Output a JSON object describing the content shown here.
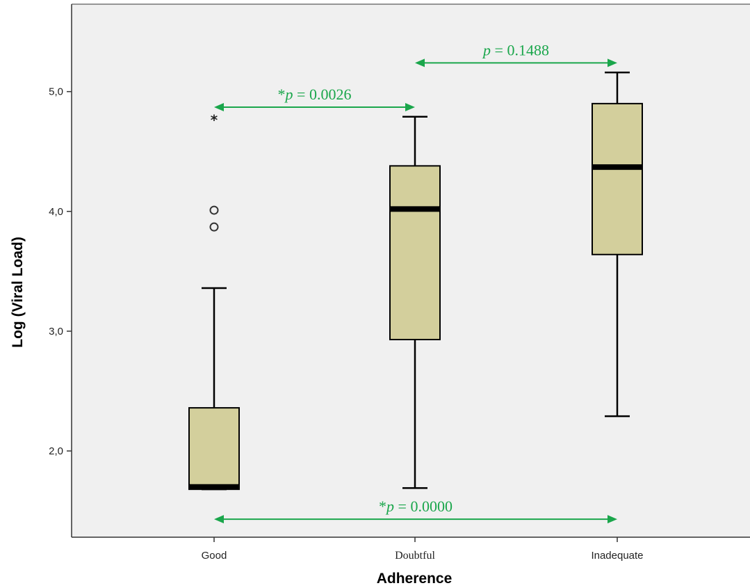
{
  "chart_data": {
    "type": "boxplot",
    "xlabel": "Adherence",
    "ylabel": "Log (Viral Load)",
    "categories": [
      "Good",
      "Doubtful",
      "Inadequate"
    ],
    "ylim": [
      1.28,
      5.73
    ],
    "yticks": [
      {
        "value": 2.0,
        "label": "2,0"
      },
      {
        "value": 3.0,
        "label": "3,0"
      },
      {
        "value": 4.0,
        "label": "4,0"
      },
      {
        "value": 5.0,
        "label": "5,0"
      }
    ],
    "grid": false,
    "box_color": "#d3cf9c",
    "plot_background": "#f0f0f0",
    "annotation_color": "#1aa64b",
    "boxes": [
      {
        "category": "Good",
        "whisker_low": 1.68,
        "q1": 1.68,
        "median": 1.7,
        "q3": 2.36,
        "whisker_high": 3.36,
        "outliers": [
          {
            "value": 4.01,
            "marker": "circle"
          },
          {
            "value": 3.87,
            "marker": "circle"
          },
          {
            "value": 4.78,
            "marker": "star"
          }
        ]
      },
      {
        "category": "Doubtful",
        "whisker_low": 1.69,
        "q1": 2.93,
        "median": 4.02,
        "q3": 4.38,
        "whisker_high": 4.79,
        "outliers": []
      },
      {
        "category": "Inadequate",
        "whisker_low": 2.29,
        "q1": 3.64,
        "median": 4.37,
        "q3": 4.9,
        "whisker_high": 5.16,
        "outliers": []
      }
    ],
    "annotations": [
      {
        "from": "Good",
        "to": "Doubtful",
        "y": 4.87,
        "prefix": "*",
        "p_symbol": "p",
        "text": " = 0.0026"
      },
      {
        "from": "Doubtful",
        "to": "Inadequate",
        "y": 5.24,
        "prefix": "",
        "p_symbol": "p",
        "text": " = 0.1488"
      },
      {
        "from": "Good",
        "to": "Inadequate",
        "y": 1.43,
        "prefix": "*",
        "p_symbol": "p",
        "text": " = 0.0000"
      }
    ]
  }
}
